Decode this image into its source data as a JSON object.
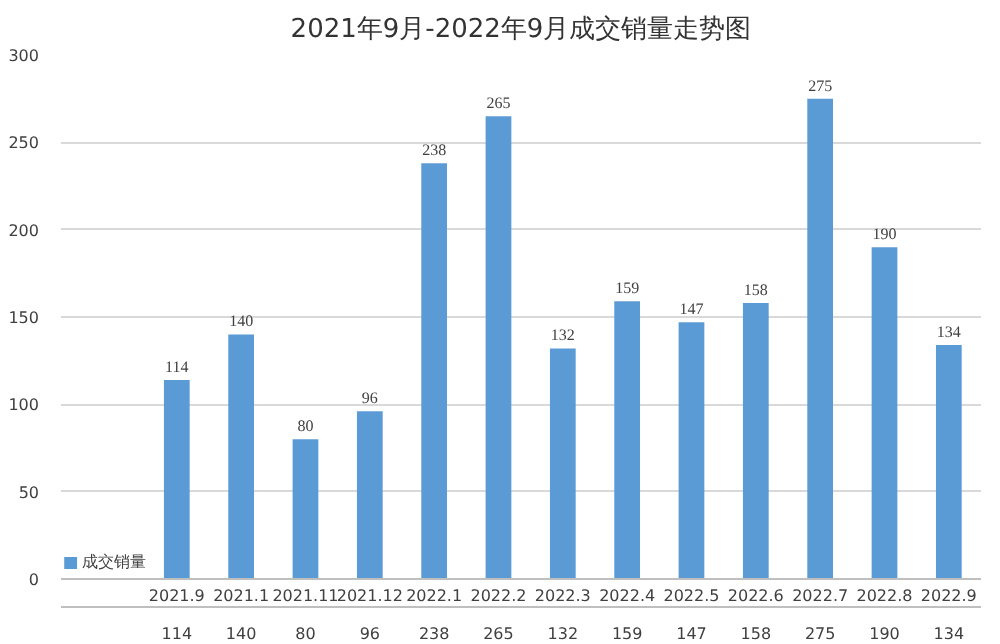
{
  "chart_data": {
    "type": "bar",
    "title": "2021年9月-2022年9月成交销量走势图",
    "categories": [
      "2021.9",
      "2021.1",
      "2021.11",
      "2021.12",
      "2022.1",
      "2022.2",
      "2022.3",
      "2022.4",
      "2022.5",
      "2022.6",
      "2022.7",
      "2022.8",
      "2022.9"
    ],
    "series": [
      {
        "name": "成交销量",
        "color": "#5b9bd5",
        "values": [
          114,
          140,
          80,
          96,
          238,
          265,
          132,
          159,
          147,
          158,
          275,
          190,
          134
        ]
      }
    ],
    "value_labels": [
      "114",
      "140",
      "80",
      "96",
      "238",
      "265",
      "132",
      "159",
      "147",
      "158",
      "275",
      "190",
      "134"
    ],
    "ylim": [
      0,
      300
    ],
    "yticks": [
      0,
      50,
      100,
      150,
      200,
      250,
      300
    ],
    "grid": "y",
    "data_labels": true
  }
}
